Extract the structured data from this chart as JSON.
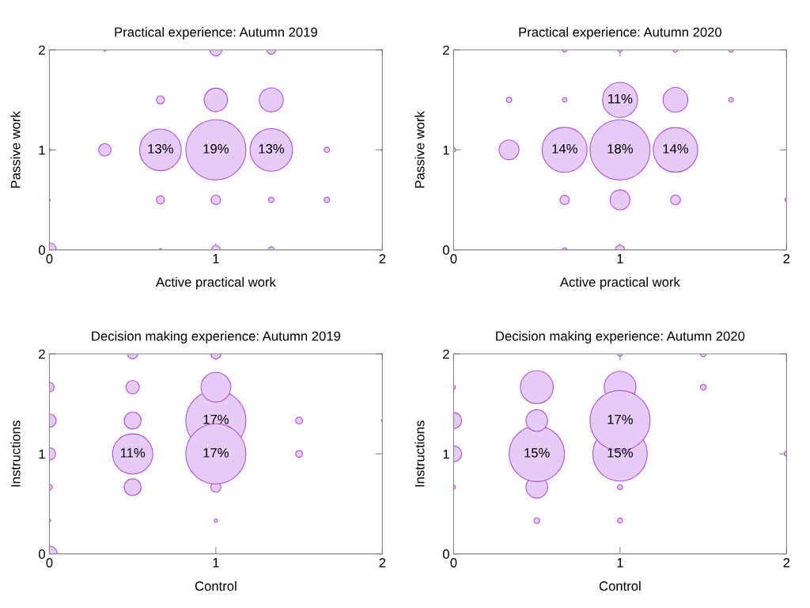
{
  "chart_data": [
    {
      "type": "bubble",
      "title": "Practical experience: Autumn 2019",
      "xlabel": "Active practical work",
      "ylabel": "Passive work",
      "color": "#e6cbf5",
      "xlim": [
        0,
        2
      ],
      "ylim": [
        0,
        2
      ],
      "xticks": [
        0,
        1,
        2
      ],
      "yticks": [
        0,
        1,
        2
      ],
      "x": [
        0,
        0.667,
        1,
        1.333,
        0,
        0.667,
        1,
        1.333,
        1.667,
        0,
        0.333,
        0.667,
        1.333,
        1,
        1.667,
        2,
        0.667,
        1,
        1.333,
        0.333,
        1,
        1.333,
        2
      ],
      "values": [
        0,
        0,
        0,
        0,
        0.5,
        0.5,
        0.5,
        0.5,
        0.5,
        1,
        1,
        1,
        1,
        1,
        1,
        1,
        1.5,
        1.5,
        1.5,
        2,
        2,
        2,
        2
      ],
      "sizes": [
        0.054,
        0.002,
        0.022,
        0.01,
        0.001,
        0.018,
        0.025,
        0.008,
        0.008,
        0.002,
        0.043,
        0.48,
        0.5,
        1,
        0.008,
        0.001,
        0.018,
        0.15,
        0.16,
        0.002,
        0.04,
        0.022,
        0.001
      ],
      "annotations": [
        {
          "text": "13%",
          "x": 0.667,
          "y": 1
        },
        {
          "text": "19%",
          "x": 1,
          "y": 1
        },
        {
          "text": "13%",
          "x": 1.333,
          "y": 1
        }
      ]
    },
    {
      "type": "bubble",
      "title": "Practical experience: Autumn 2020",
      "xlabel": "Active practical work",
      "ylabel": "Passive work",
      "color": "#e6cbf5",
      "xlim": [
        0,
        2
      ],
      "ylim": [
        0,
        2
      ],
      "xticks": [
        0,
        1,
        2
      ],
      "yticks": [
        0,
        1,
        2
      ],
      "x": [
        0.667,
        1,
        0.667,
        1,
        1.333,
        2,
        0,
        0.333,
        0.667,
        1.333,
        1,
        0.333,
        0.667,
        1,
        1.333,
        1.667,
        0.667,
        1,
        1.333,
        1.667
      ],
      "values": [
        0,
        0,
        0.5,
        0.5,
        0.5,
        0.5,
        1,
        1,
        1,
        1,
        1,
        1.5,
        1.5,
        1.5,
        1.5,
        1.5,
        2,
        2,
        2,
        2
      ],
      "sizes": [
        0.005,
        0.024,
        0.024,
        0.11,
        0.027,
        0.003,
        0.005,
        0.11,
        0.56,
        0.55,
        1,
        0.008,
        0.006,
        0.34,
        0.17,
        0.006,
        0.005,
        0.005,
        0.006,
        0.006
      ],
      "annotations": [
        {
          "text": "11%",
          "x": 1,
          "y": 1.5
        },
        {
          "text": "14%",
          "x": 0.667,
          "y": 1
        },
        {
          "text": "18%",
          "x": 1,
          "y": 1
        },
        {
          "text": "14%",
          "x": 1.333,
          "y": 1
        }
      ]
    },
    {
      "type": "bubble",
      "title": "Decision making experience: Autumn 2019",
      "xlabel": "Control",
      "ylabel": "Instructions",
      "color": "#e6cbf5",
      "xlim": [
        0,
        2
      ],
      "ylim": [
        0,
        2
      ],
      "xticks": [
        0,
        1,
        2
      ],
      "yticks": [
        0,
        1,
        2
      ],
      "x": [
        0,
        0,
        0,
        0,
        0,
        0,
        0.5,
        0.5,
        0.5,
        0.5,
        0.5,
        1,
        1,
        1,
        1,
        1,
        1,
        1.5,
        1.5,
        2,
        2
      ],
      "values": [
        0,
        0.333,
        0.667,
        1,
        1.333,
        1.667,
        0.667,
        1,
        1.333,
        1.667,
        2,
        0.333,
        0.667,
        1.333,
        1,
        1.667,
        2,
        1,
        1.333,
        1.333,
        2
      ],
      "sizes": [
        0.068,
        0.002,
        0.009,
        0.042,
        0.05,
        0.025,
        0.079,
        0.45,
        0.079,
        0.05,
        0.028,
        0.003,
        0.028,
        1,
        1,
        0.245,
        0.028,
        0.013,
        0.013,
        0.001,
        0.001
      ],
      "annotations": [
        {
          "text": "17%",
          "x": 1,
          "y": 1.333
        },
        {
          "text": "11%",
          "x": 0.5,
          "y": 1
        },
        {
          "text": "17%",
          "x": 1,
          "y": 1
        }
      ]
    },
    {
      "type": "bubble",
      "title": "Decision making experience: Autumn 2020",
      "xlabel": "Control",
      "ylabel": "Instructions",
      "color": "#e6cbf5",
      "xlim": [
        0,
        2
      ],
      "ylim": [
        0,
        2
      ],
      "xticks": [
        0,
        1,
        2
      ],
      "yticks": [
        0,
        1,
        2
      ],
      "x": [
        0,
        0,
        0,
        0,
        0.5,
        0.5,
        0.5,
        0.5,
        0.5,
        1,
        1,
        1,
        1.5,
        1.5,
        2,
        1,
        1,
        1
      ],
      "values": [
        0.667,
        1,
        1.333,
        1.667,
        0.333,
        0.667,
        1,
        1.333,
        1.667,
        0.333,
        0.667,
        2,
        1.667,
        2,
        1,
        1.667,
        1,
        1.333
      ],
      "sizes": [
        0.004,
        0.071,
        0.071,
        0.004,
        0.009,
        0.13,
        0.85,
        0.13,
        0.3,
        0.007,
        0.007,
        0.006,
        0.009,
        0.009,
        0.006,
        0.28,
        0.82,
        1
      ],
      "annotations": [
        {
          "text": "17%",
          "x": 1,
          "y": 1.333
        },
        {
          "text": "15%",
          "x": 0.5,
          "y": 1
        },
        {
          "text": "15%",
          "x": 1,
          "y": 1
        }
      ]
    }
  ]
}
